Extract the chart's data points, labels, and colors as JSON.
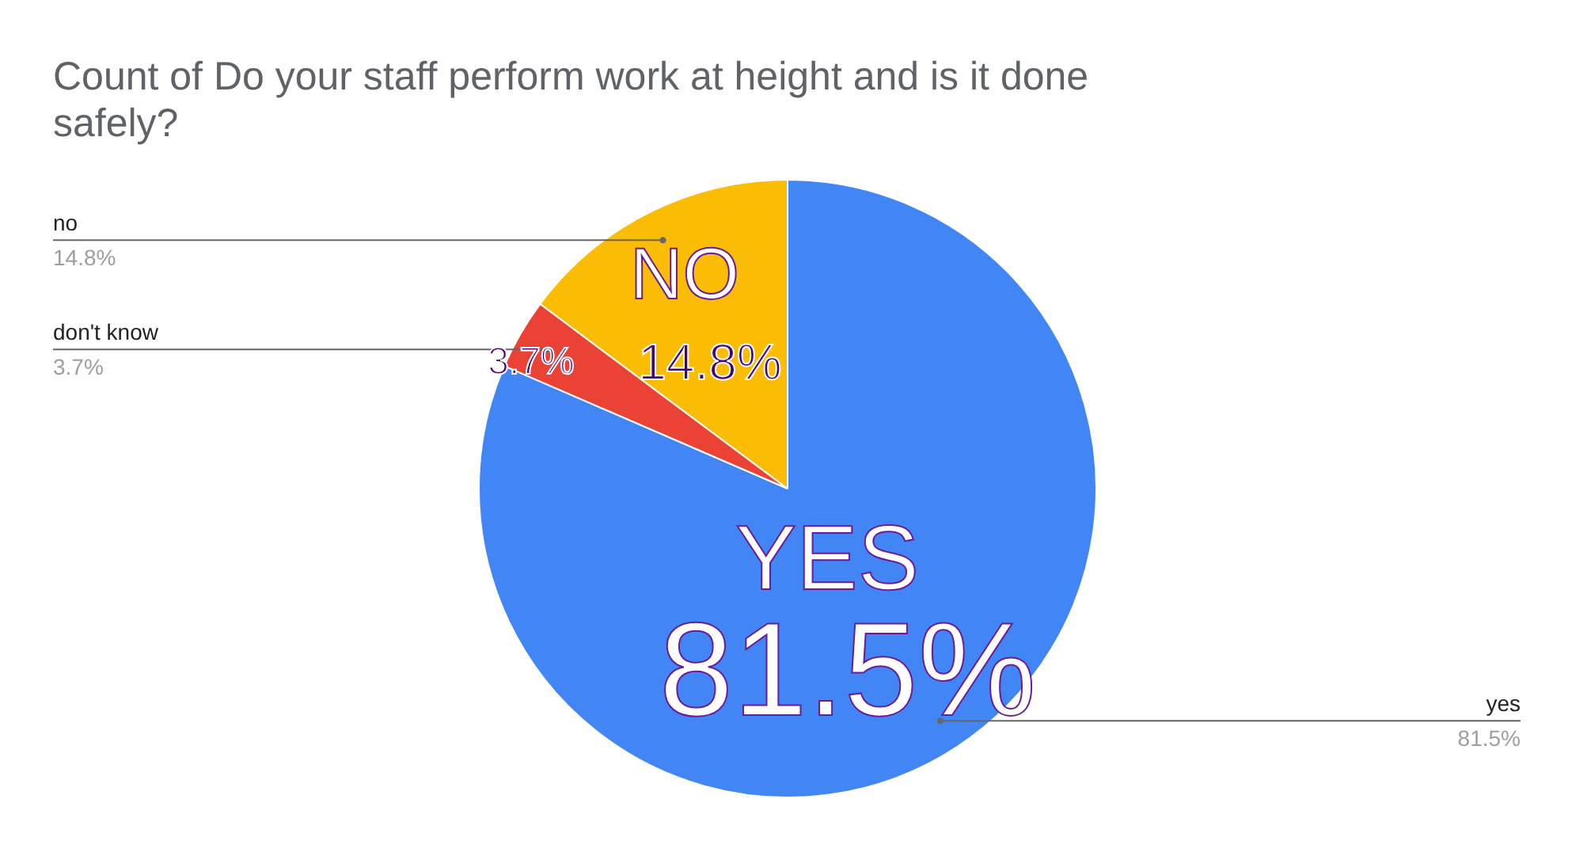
{
  "chart_data": {
    "type": "pie",
    "title": "Count of Do your staff perform work at height and is it done safely?",
    "categories": [
      "yes",
      "don't know",
      "no"
    ],
    "values": [
      81.5,
      3.7,
      14.8
    ],
    "value_labels": [
      "81.5%",
      "3.7%",
      "14.8%"
    ],
    "colors": [
      "#4285f4",
      "#ea4335",
      "#fbbc04"
    ],
    "annotations": [
      "NO",
      "14.8%",
      "3.7%",
      "YES",
      "81.5%"
    ]
  }
}
